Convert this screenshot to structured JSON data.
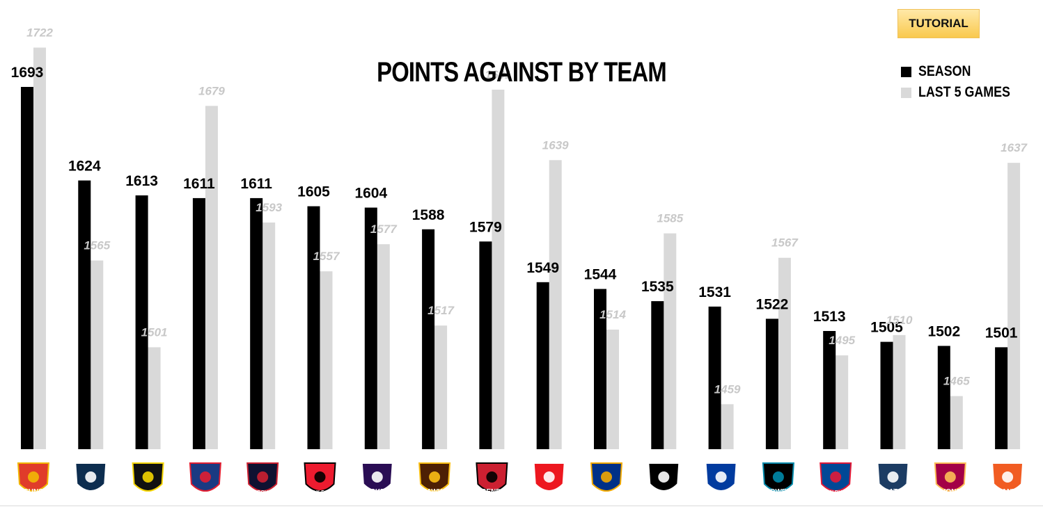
{
  "tutorial_label": "TUTORIAL",
  "colors": {
    "season": "#000000",
    "last5": "#d9d9d9",
    "last5_label": "#c8c8c8"
  },
  "chart_data": {
    "type": "bar",
    "title": "POINTS AGAINST BY TEAM",
    "legend": {
      "placement": "top-right"
    },
    "grid": false,
    "ylim": [
      1350,
      1760
    ],
    "categories": [
      "Gold Coast Suns",
      "Carlton",
      "Richmond",
      "Adelaide",
      "Melbourne",
      "St Kilda",
      "Fremantle",
      "Hawthorn",
      "Essendon",
      "Sydney Swans",
      "West Coast Eagles",
      "Collingwood",
      "North Melbourne",
      "Port Adelaide",
      "Western Bulldogs",
      "Geelong Cats",
      "Brisbane Lions",
      "GWS Giants"
    ],
    "series": [
      {
        "name": "SEASON",
        "values": [
          1693,
          1624,
          1613,
          1611,
          1611,
          1605,
          1604,
          1588,
          1579,
          1549,
          1544,
          1535,
          1531,
          1522,
          1513,
          1505,
          1502,
          1501
        ]
      },
      {
        "name": "LAST 5 GAMES",
        "values": [
          1722,
          1565,
          1501,
          1679,
          1593,
          1557,
          1577,
          1517,
          1691,
          1639,
          1514,
          1585,
          1459,
          1567,
          1495,
          1510,
          1465,
          1637
        ]
      }
    ],
    "logos": [
      {
        "icon": "suns-logo",
        "text": "SUNS",
        "color": "#e03c2a",
        "accent": "#f2b705"
      },
      {
        "icon": "carlton-logo",
        "text": "",
        "color": "#0d2d4f",
        "accent": "#ffffff"
      },
      {
        "icon": "tigers-logo",
        "text": "",
        "color": "#111111",
        "accent": "#f5d500"
      },
      {
        "icon": "crows-logo",
        "text": "",
        "color": "#1a3a82",
        "accent": "#e21e31"
      },
      {
        "icon": "melbourne-logo",
        "text": "MELBOURNE",
        "color": "#0f1131",
        "accent": "#cc2031"
      },
      {
        "icon": "stkilda-logo",
        "text": "St.K.F.C.",
        "color": "#ed1b2f",
        "accent": "#000000"
      },
      {
        "icon": "fremantle-logo",
        "text": "DOCKERS",
        "color": "#2a0d54",
        "accent": "#ffffff"
      },
      {
        "icon": "hawks-logo",
        "text": "HAWKS",
        "color": "#4d2004",
        "accent": "#fbbf15"
      },
      {
        "icon": "essendon-logo",
        "text": "ESSENDON",
        "color": "#cc2031",
        "accent": "#000000"
      },
      {
        "icon": "swans-logo",
        "text": "SYDNEY SWANS",
        "color": "#ed171f",
        "accent": "#ffffff"
      },
      {
        "icon": "eagles-logo",
        "text": "",
        "color": "#003087",
        "accent": "#f2a900"
      },
      {
        "icon": "collingwood-logo",
        "text": "",
        "color": "#000000",
        "accent": "#ffffff"
      },
      {
        "icon": "kangaroos-logo",
        "text": "KANGAROOS",
        "color": "#013b9f",
        "accent": "#ffffff"
      },
      {
        "icon": "power-logo",
        "text": "POWER",
        "color": "#000000",
        "accent": "#008aab"
      },
      {
        "icon": "bulldogs-logo",
        "text": "WESTERN BULLDOGS",
        "color": "#014896",
        "accent": "#e21937"
      },
      {
        "icon": "geelong-logo",
        "text": "CATS",
        "color": "#1c3c63",
        "accent": "#ffffff"
      },
      {
        "icon": "lions-logo",
        "text": "LIONS",
        "color": "#a30046",
        "accent": "#fdbe57"
      },
      {
        "icon": "giants-logo",
        "text": "GIANTS",
        "color": "#f15c22",
        "accent": "#ffffff"
      }
    ]
  }
}
